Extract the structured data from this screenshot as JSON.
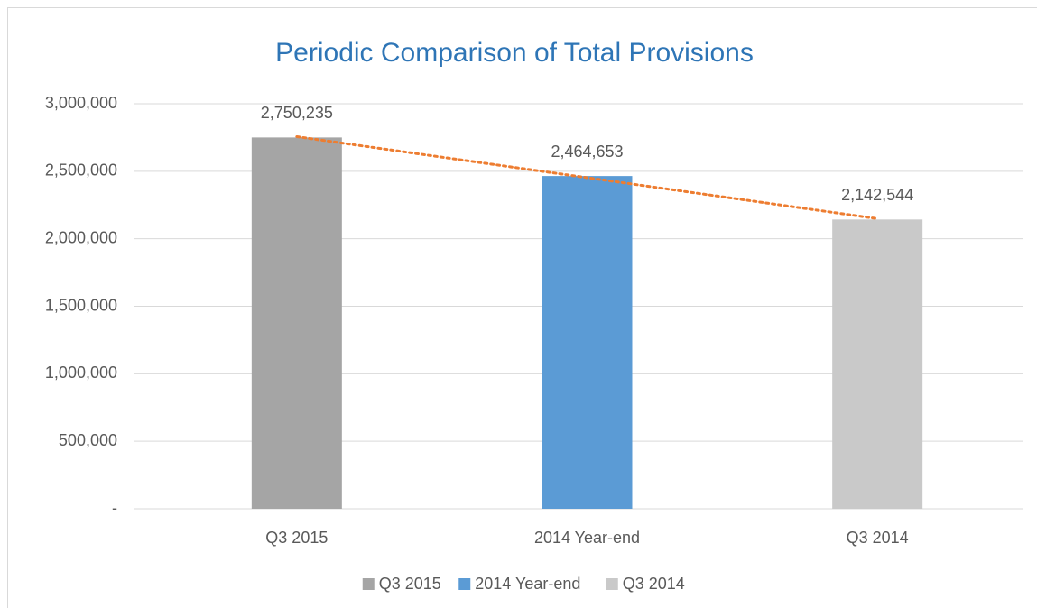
{
  "chart_data": {
    "type": "bar",
    "title": "Periodic Comparison of Total Provisions",
    "categories": [
      "Q3 2015",
      "2014 Year-end",
      "Q3 2014"
    ],
    "values": [
      2750235,
      2464653,
      2142544
    ],
    "value_labels": [
      "2,750,235",
      "2,464,653",
      "2,142,544"
    ],
    "colors": [
      "#a5a5a5",
      "#5b9bd5",
      "#c9c9c9"
    ],
    "ylim": [
      0,
      3000000
    ],
    "yticks": [
      {
        "value": 0,
        "label": "-"
      },
      {
        "value": 500000,
        "label": "500,000"
      },
      {
        "value": 1000000,
        "label": "1,000,000"
      },
      {
        "value": 1500000,
        "label": "1,500,000"
      },
      {
        "value": 2000000,
        "label": "2,000,000"
      },
      {
        "value": 2500000,
        "label": "2,500,000"
      },
      {
        "value": 3000000,
        "label": "3,000,000"
      }
    ],
    "grid": true,
    "legend": "bottom",
    "trendline": "linear",
    "trendline_color": "#ed7d31"
  }
}
